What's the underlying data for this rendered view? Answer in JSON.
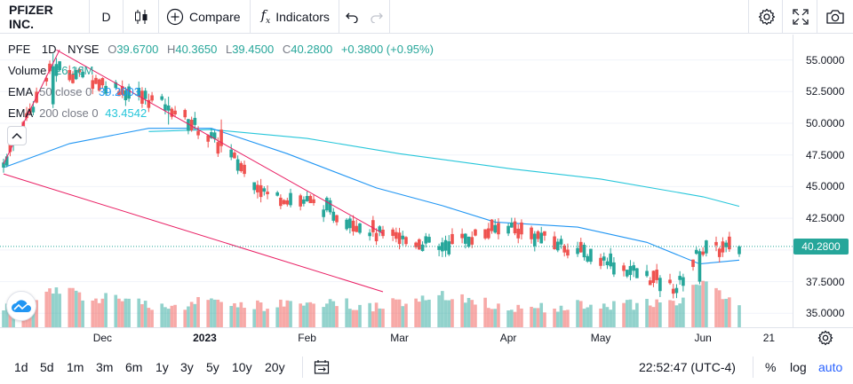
{
  "toolbar": {
    "symbol": "PFIZER INC.",
    "interval": "D",
    "compare_label": "Compare",
    "indicators_label": "Indicators"
  },
  "legend": {
    "ticker": "PFE",
    "interval": "1D",
    "exchange": "NYSE",
    "open_label": "O",
    "open": "39.6700",
    "high_label": "H",
    "high": "40.3650",
    "low_label": "L",
    "low": "39.4500",
    "close_label": "C",
    "close": "40.2800",
    "change": "+0.3800 (+0.95%)",
    "volume_label": "Volume",
    "volume": "26.16M",
    "ema50_label": "EMA",
    "ema50_params": "50 close 0",
    "ema50_value": "39.2003",
    "ema200_label": "EMA",
    "ema200_params": "200 close 0",
    "ema200_value": "43.4542"
  },
  "price_axis": {
    "ticks": [
      "55.0000",
      "52.5000",
      "50.0000",
      "47.5000",
      "45.0000",
      "42.5000",
      "37.5000",
      "35.0000"
    ],
    "last_price": "40.2800"
  },
  "time_axis": {
    "ticks": [
      {
        "label": "Dec",
        "bold": false
      },
      {
        "label": "2023",
        "bold": true
      },
      {
        "label": "Feb",
        "bold": false
      },
      {
        "label": "Mar",
        "bold": false
      },
      {
        "label": "Apr",
        "bold": false
      },
      {
        "label": "May",
        "bold": false
      },
      {
        "label": "Jun",
        "bold": false
      },
      {
        "label": "21",
        "bold": false
      }
    ]
  },
  "bottom": {
    "ranges": [
      "1d",
      "5d",
      "1m",
      "3m",
      "6m",
      "1y",
      "3y",
      "5y",
      "10y",
      "20y"
    ],
    "clock": "22:52:47 (UTC-4)",
    "percent_label": "%",
    "log_label": "log",
    "auto_label": "auto"
  },
  "colors": {
    "up": "#26a69a",
    "down": "#ef5350",
    "ema50": "#2196f3",
    "ema200": "#26c6da",
    "channel": "#e91e63",
    "accent": "#2962ff"
  },
  "chart_data": {
    "type": "candlestick",
    "price_range": [
      33.9,
      57.0
    ],
    "channel_lines": [
      {
        "from": {
          "date": "2022-11-01",
          "price": 46.0
        },
        "to": {
          "date": "2023-02-24",
          "price": 36.7
        }
      },
      {
        "from": {
          "date": "2022-11-17",
          "price": 55.8
        },
        "to": {
          "date": "2023-02-24",
          "price": 41.3
        }
      },
      {
        "from": {
          "date": "2022-11-01",
          "price": 46.8
        },
        "to": {
          "date": "2022-11-18",
          "price": 55.8
        }
      }
    ],
    "ema50_anchors": [
      {
        "date": "2022-11-01",
        "price": 46.5
      },
      {
        "date": "2022-11-21",
        "price": 48.4
      },
      {
        "date": "2022-12-15",
        "price": 49.6
      },
      {
        "date": "2023-01-03",
        "price": 49.6
      },
      {
        "date": "2023-01-26",
        "price": 47.6
      },
      {
        "date": "2023-02-22",
        "price": 44.9
      },
      {
        "date": "2023-03-14",
        "price": 43.5
      },
      {
        "date": "2023-03-30",
        "price": 42.2
      },
      {
        "date": "2023-04-24",
        "price": 41.8
      },
      {
        "date": "2023-05-15",
        "price": 40.6
      },
      {
        "date": "2023-05-31",
        "price": 38.9
      },
      {
        "date": "2023-06-12",
        "price": 39.2
      }
    ],
    "ema200_anchors": [
      {
        "date": "2022-12-15",
        "price": 49.35
      },
      {
        "date": "2023-01-03",
        "price": 49.5
      },
      {
        "date": "2023-02-01",
        "price": 48.8
      },
      {
        "date": "2023-03-01",
        "price": 47.6
      },
      {
        "date": "2023-04-04",
        "price": 46.4
      },
      {
        "date": "2023-05-01",
        "price": 45.6
      },
      {
        "date": "2023-06-01",
        "price": 44.2
      },
      {
        "date": "2023-06-12",
        "price": 43.45
      }
    ],
    "candles": [
      {
        "date": "2022-11-01",
        "o": 46.5,
        "h": 47.2,
        "l": 46.1,
        "c": 46.9,
        "v": 20
      },
      {
        "date": "2022-11-16",
        "o": 51.5,
        "h": 55.5,
        "l": 51.2,
        "c": 54.5,
        "v": 40
      },
      {
        "date": "2022-12-21",
        "o": 51.0,
        "h": 52.1,
        "l": 49.9,
        "c": 51.4,
        "v": 22
      },
      {
        "date": "2023-01-06",
        "o": 49.5,
        "h": 50.3,
        "l": 47.7,
        "c": 48.2,
        "v": 30
      },
      {
        "date": "2023-01-20",
        "o": 44.6,
        "h": 45.1,
        "l": 44.0,
        "c": 44.4,
        "v": 22
      },
      {
        "date": "2023-02-03",
        "o": 44.0,
        "h": 44.4,
        "l": 43.5,
        "c": 43.7,
        "v": 28
      },
      {
        "date": "2023-02-24",
        "o": 41.6,
        "h": 41.9,
        "l": 40.9,
        "c": 41.1,
        "v": 22
      },
      {
        "date": "2023-03-13",
        "o": 40.0,
        "h": 40.5,
        "l": 39.5,
        "c": 40.3,
        "v": 38
      },
      {
        "date": "2023-04-03",
        "o": 41.3,
        "h": 42.1,
        "l": 41.1,
        "c": 41.9,
        "v": 20
      },
      {
        "date": "2023-05-03",
        "o": 38.8,
        "h": 39.4,
        "l": 38.5,
        "c": 39.1,
        "v": 24
      },
      {
        "date": "2023-05-24",
        "o": 36.6,
        "h": 37.3,
        "l": 36.2,
        "c": 37.0,
        "v": 26
      },
      {
        "date": "2023-05-31",
        "o": 37.5,
        "h": 40.1,
        "l": 37.3,
        "c": 39.9,
        "v": 50
      },
      {
        "date": "2023-06-12",
        "o": 39.67,
        "h": 40.365,
        "l": 39.45,
        "c": 40.28,
        "v": 26.16
      }
    ]
  }
}
